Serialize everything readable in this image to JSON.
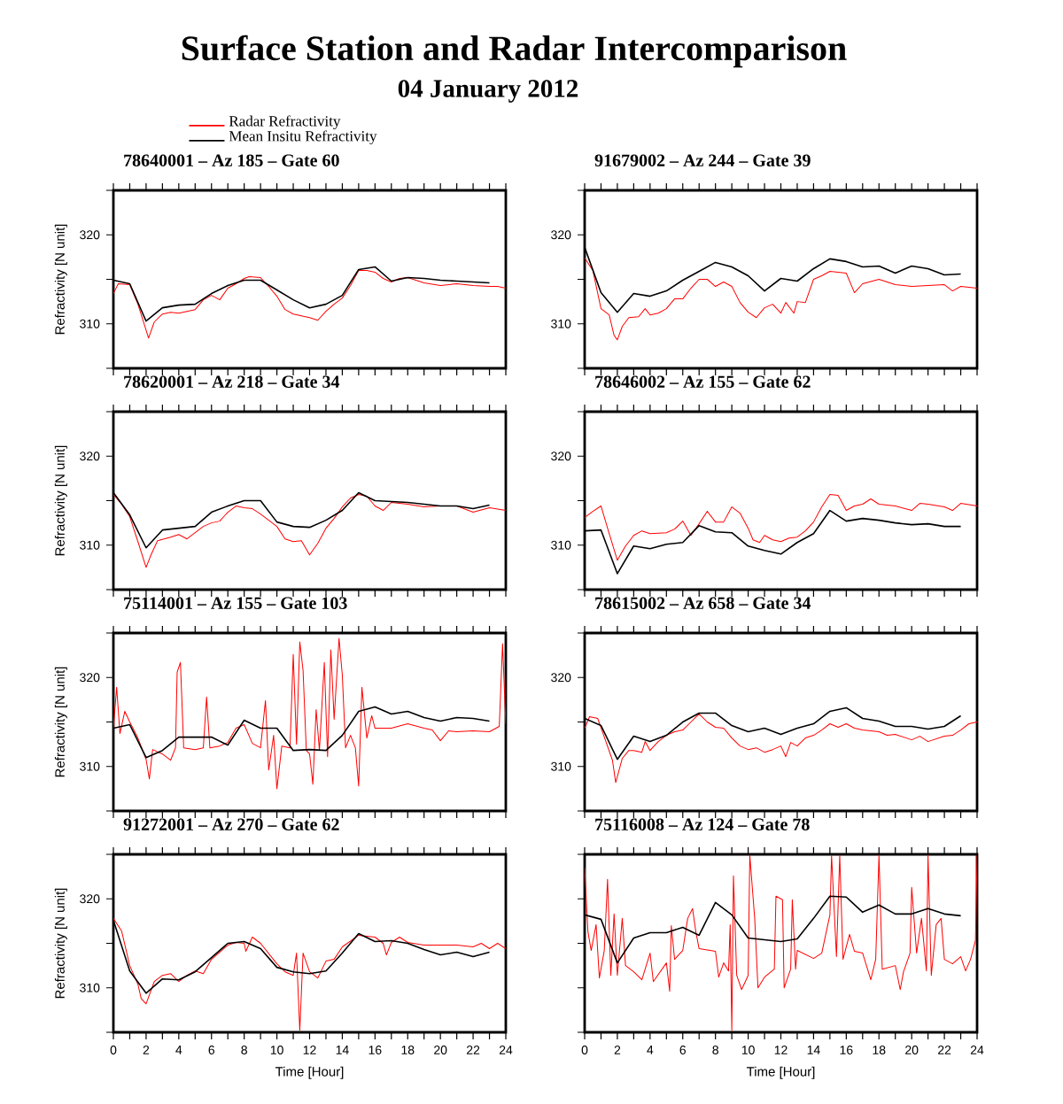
{
  "chart_data": [
    {
      "type": "line",
      "title": "78640001 – Az 185 – Gate 60",
      "ylabel": "Refractivity [N unit]",
      "annotations": [
        "Surface Station and Radar Intercomparison",
        "04 January 2012"
      ],
      "legend": "top left",
      "tick_labels": "y",
      "xlim": [
        0,
        24
      ],
      "ylim": [
        305,
        325
      ],
      "xticks": [
        0,
        {
          "value": 1,
          "label": null
        },
        2,
        {
          "value": 3,
          "label": null
        },
        4,
        {
          "value": 5,
          "label": null
        },
        6,
        {
          "value": 7,
          "label": null
        },
        8,
        {
          "value": 9,
          "label": null
        },
        10,
        {
          "value": 11,
          "label": null
        },
        12,
        {
          "value": 13,
          "label": null
        },
        14,
        {
          "value": 15,
          "label": null
        },
        16,
        {
          "value": 17,
          "label": null
        },
        18,
        {
          "value": 19,
          "label": null
        },
        20,
        {
          "value": 21,
          "label": null
        },
        22,
        {
          "value": 23,
          "label": null
        },
        24
      ],
      "yticks": [
        {
          "value": 305,
          "label": null
        },
        310,
        {
          "value": 315,
          "label": null
        },
        320,
        {
          "value": 325,
          "label": null
        }
      ],
      "series": [
        {
          "name": "Radar Refractivity",
          "color": "#ff0000",
          "x": [
            0,
            0.3,
            1,
            1.5,
            2,
            2.15,
            2.5,
            3,
            3.5,
            4,
            4.5,
            5,
            5.5,
            6,
            6.5,
            7,
            7.5,
            8,
            8.3,
            9,
            9.5,
            10,
            10.5,
            11,
            11.5,
            12,
            12.5,
            13,
            13.5,
            14,
            14.5,
            15,
            15.5,
            16,
            16.5,
            17,
            17.5,
            18,
            18.5,
            19,
            20,
            21,
            22,
            23,
            23.5,
            24
          ],
          "values": [
            313.4,
            314.5,
            314.4,
            312.2,
            309.3,
            308.4,
            310.2,
            311.1,
            311.3,
            311.2,
            311.4,
            311.6,
            312.7,
            313.2,
            312.7,
            314.0,
            314.5,
            315.1,
            315.3,
            315.2,
            314.2,
            313.1,
            311.6,
            311.1,
            310.9,
            310.7,
            310.4,
            311.4,
            312.2,
            312.9,
            314.3,
            316.0,
            316.0,
            315.8,
            315.1,
            314.7,
            315.1,
            315.2,
            314.9,
            314.6,
            314.3,
            314.5,
            314.3,
            314.2,
            314.2,
            314.0
          ]
        },
        {
          "name": "Mean Insitu Refractivity",
          "color": "#000000",
          "x": [
            0,
            1,
            2,
            3,
            4,
            5,
            6,
            7,
            8,
            9,
            10,
            11,
            12,
            13,
            14,
            15,
            16,
            17,
            18,
            19,
            20,
            21,
            22,
            23
          ],
          "values": [
            314.9,
            314.5,
            310.3,
            311.8,
            312.1,
            312.2,
            313.4,
            314.3,
            314.9,
            314.9,
            313.8,
            312.7,
            311.8,
            312.2,
            313.2,
            316.1,
            316.4,
            314.8,
            315.2,
            315.1,
            314.9,
            314.8,
            314.7,
            314.6
          ]
        }
      ]
    },
    {
      "type": "line",
      "title": "91679002 – Az 244 – Gate 39",
      "tick_labels": "y",
      "xlim": [
        0,
        24
      ],
      "ylim": [
        305,
        325
      ],
      "xticks": [
        0,
        {
          "value": 1,
          "label": null
        },
        2,
        {
          "value": 3,
          "label": null
        },
        4,
        {
          "value": 5,
          "label": null
        },
        6,
        {
          "value": 7,
          "label": null
        },
        8,
        {
          "value": 9,
          "label": null
        },
        10,
        {
          "value": 11,
          "label": null
        },
        12,
        {
          "value": 13,
          "label": null
        },
        14,
        {
          "value": 15,
          "label": null
        },
        16,
        {
          "value": 17,
          "label": null
        },
        18,
        {
          "value": 19,
          "label": null
        },
        20,
        {
          "value": 21,
          "label": null
        },
        22,
        {
          "value": 23,
          "label": null
        },
        24
      ],
      "yticks": [
        {
          "value": 305,
          "label": null
        },
        310,
        {
          "value": 315,
          "label": null
        },
        320,
        {
          "value": 325,
          "label": null
        }
      ],
      "series": [
        {
          "color": "#ff0000",
          "x": [
            0,
            0.5,
            1,
            1.5,
            1.8,
            2,
            2.3,
            2.7,
            3.3,
            3.7,
            4,
            4.5,
            5,
            5.5,
            6,
            6.5,
            7,
            7.5,
            8,
            8.5,
            9,
            9.5,
            10,
            10.5,
            11,
            11.5,
            12,
            12.3,
            12.8,
            13,
            13.5,
            14,
            14.5,
            15,
            16,
            16.5,
            17,
            18,
            19,
            20,
            21,
            22,
            22.5,
            23,
            24
          ],
          "values": [
            317.4,
            316.0,
            311.7,
            311.0,
            308.7,
            308.2,
            309.7,
            310.7,
            310.8,
            311.7,
            311.0,
            311.2,
            311.7,
            312.8,
            312.8,
            314.0,
            315.0,
            315.0,
            314.2,
            314.7,
            314.2,
            312.4,
            311.3,
            310.7,
            311.8,
            312.2,
            311.2,
            312.4,
            311.2,
            312.5,
            312.4,
            315.0,
            315.4,
            315.9,
            315.7,
            313.5,
            314.5,
            315.0,
            314.4,
            314.2,
            314.3,
            314.4,
            313.7,
            314.2,
            314.0
          ]
        },
        {
          "color": "#000000",
          "x": [
            0,
            1,
            2,
            3,
            4,
            5,
            6,
            7,
            8,
            9,
            10,
            11,
            12,
            13,
            14,
            15,
            16,
            17,
            18,
            19,
            20,
            21,
            22,
            23
          ],
          "values": [
            318.6,
            313.5,
            311.3,
            313.4,
            313.1,
            313.7,
            314.9,
            315.9,
            316.9,
            316.4,
            315.4,
            313.7,
            315.1,
            314.8,
            316.2,
            317.3,
            317.0,
            316.4,
            316.5,
            315.7,
            316.5,
            316.2,
            315.5,
            315.6
          ]
        }
      ]
    },
    {
      "type": "line",
      "title": "78620001 – Az 218 – Gate 34",
      "ylabel": "Refractivity [N unit]",
      "tick_labels": "y",
      "xlim": [
        0,
        24
      ],
      "ylim": [
        305,
        325
      ],
      "xticks": [
        0,
        {
          "value": 1,
          "label": null
        },
        2,
        {
          "value": 3,
          "label": null
        },
        4,
        {
          "value": 5,
          "label": null
        },
        6,
        {
          "value": 7,
          "label": null
        },
        8,
        {
          "value": 9,
          "label": null
        },
        10,
        {
          "value": 11,
          "label": null
        },
        12,
        {
          "value": 13,
          "label": null
        },
        14,
        {
          "value": 15,
          "label": null
        },
        16,
        {
          "value": 17,
          "label": null
        },
        18,
        {
          "value": 19,
          "label": null
        },
        20,
        {
          "value": 21,
          "label": null
        },
        22,
        {
          "value": 23,
          "label": null
        },
        24
      ],
      "yticks": [
        {
          "value": 305,
          "label": null
        },
        310,
        {
          "value": 315,
          "label": null
        },
        320,
        {
          "value": 325,
          "label": null
        }
      ],
      "series": [
        {
          "color": "#ff0000",
          "x": [
            0,
            0.5,
            1,
            1.5,
            2,
            2.3,
            2.7,
            3.5,
            4,
            4.5,
            5,
            5.5,
            6,
            6.5,
            7,
            7.5,
            8,
            8.5,
            9,
            10,
            10.5,
            11,
            11.5,
            12,
            12.5,
            13,
            13.5,
            14,
            14.5,
            15,
            15.5,
            16,
            16.5,
            17,
            18,
            19,
            20,
            21,
            22,
            23,
            24
          ],
          "values": [
            315.7,
            314.6,
            313.2,
            310.4,
            307.5,
            308.9,
            310.5,
            310.9,
            311.2,
            310.7,
            311.4,
            312.1,
            312.5,
            312.7,
            313.7,
            314.4,
            314.2,
            314.1,
            313.5,
            312.1,
            310.7,
            310.4,
            310.5,
            308.9,
            310.2,
            311.9,
            313.0,
            314.3,
            315.3,
            315.7,
            315.5,
            314.4,
            313.9,
            314.8,
            314.6,
            314.3,
            314.4,
            314.4,
            313.7,
            314.2,
            313.9
          ]
        },
        {
          "color": "#000000",
          "x": [
            0,
            1,
            2,
            3,
            4,
            5,
            6,
            7,
            8,
            9,
            10,
            11,
            12,
            13,
            14,
            15,
            16,
            17,
            18,
            19,
            20,
            21,
            22,
            23
          ],
          "values": [
            315.9,
            313.4,
            309.7,
            311.7,
            311.9,
            312.1,
            313.7,
            314.4,
            315.0,
            315.0,
            312.6,
            312.1,
            312.0,
            312.8,
            313.9,
            315.9,
            315.0,
            314.9,
            314.8,
            314.6,
            314.4,
            314.4,
            314.1,
            314.5
          ]
        }
      ]
    },
    {
      "type": "line",
      "title": "78646002 – Az 155 – Gate 62",
      "tick_labels": "y",
      "xlim": [
        0,
        24
      ],
      "ylim": [
        305,
        325
      ],
      "xticks": [
        0,
        {
          "value": 1,
          "label": null
        },
        2,
        {
          "value": 3,
          "label": null
        },
        4,
        {
          "value": 5,
          "label": null
        },
        6,
        {
          "value": 7,
          "label": null
        },
        8,
        {
          "value": 9,
          "label": null
        },
        10,
        {
          "value": 11,
          "label": null
        },
        12,
        {
          "value": 13,
          "label": null
        },
        14,
        {
          "value": 15,
          "label": null
        },
        16,
        {
          "value": 17,
          "label": null
        },
        18,
        {
          "value": 19,
          "label": null
        },
        20,
        {
          "value": 21,
          "label": null
        },
        22,
        {
          "value": 23,
          "label": null
        },
        24
      ],
      "yticks": [
        {
          "value": 305,
          "label": null
        },
        310,
        {
          "value": 315,
          "label": null
        },
        320,
        {
          "value": 325,
          "label": null
        }
      ],
      "series": [
        {
          "color": "#ff0000",
          "x": [
            0,
            0.5,
            1,
            1.5,
            2,
            2.5,
            3,
            3.5,
            4,
            5,
            5.5,
            6,
            6.5,
            7,
            7.5,
            8,
            8.5,
            9,
            9.5,
            10,
            10.3,
            10.7,
            11,
            11.5,
            12,
            12.5,
            13,
            13.5,
            14,
            14.5,
            15,
            15.5,
            16,
            16.5,
            17,
            17.5,
            18,
            19,
            20,
            20.5,
            21,
            22,
            22.5,
            23,
            24
          ],
          "values": [
            313.1,
            313.8,
            314.4,
            311.3,
            308.3,
            309.9,
            311.1,
            311.6,
            311.3,
            311.4,
            311.8,
            312.7,
            311.1,
            312.4,
            313.8,
            312.6,
            312.6,
            314.3,
            313.6,
            311.9,
            310.6,
            310.3,
            311.1,
            310.6,
            310.4,
            310.8,
            310.9,
            311.6,
            312.6,
            314.3,
            315.7,
            315.6,
            313.9,
            314.4,
            314.6,
            315.2,
            314.6,
            314.4,
            313.9,
            314.7,
            314.6,
            314.3,
            313.9,
            314.7,
            314.4
          ]
        },
        {
          "color": "#000000",
          "x": [
            0,
            1,
            2,
            3,
            4,
            5,
            6,
            7,
            8,
            9,
            10,
            11,
            12,
            13,
            14,
            15,
            16,
            17,
            18,
            19,
            20,
            21,
            22,
            23
          ],
          "values": [
            311.6,
            311.7,
            306.8,
            309.9,
            309.6,
            310.1,
            310.3,
            312.2,
            311.5,
            311.4,
            309.9,
            309.4,
            309.0,
            310.3,
            311.3,
            313.9,
            312.7,
            313.0,
            312.8,
            312.5,
            312.3,
            312.4,
            312.1,
            312.1
          ]
        }
      ]
    },
    {
      "type": "line",
      "title": "75114001 – Az 155 – Gate 103",
      "ylabel": "Refractivity [N unit]",
      "tick_labels": "y",
      "xlim": [
        0,
        24
      ],
      "ylim": [
        305,
        325
      ],
      "xticks": [
        0,
        {
          "value": 1,
          "label": null
        },
        2,
        {
          "value": 3,
          "label": null
        },
        4,
        {
          "value": 5,
          "label": null
        },
        6,
        {
          "value": 7,
          "label": null
        },
        8,
        {
          "value": 9,
          "label": null
        },
        10,
        {
          "value": 11,
          "label": null
        },
        12,
        {
          "value": 13,
          "label": null
        },
        14,
        {
          "value": 15,
          "label": null
        },
        16,
        {
          "value": 17,
          "label": null
        },
        18,
        {
          "value": 19,
          "label": null
        },
        20,
        {
          "value": 21,
          "label": null
        },
        22,
        {
          "value": 23,
          "label": null
        },
        24
      ],
      "yticks": [
        {
          "value": 305,
          "label": null
        },
        310,
        {
          "value": 315,
          "label": null
        },
        320,
        {
          "value": 325,
          "label": null
        }
      ],
      "series": [
        {
          "color": "#ff0000",
          "x": [
            0,
            0.2,
            0.4,
            0.7,
            1,
            1.5,
            2,
            2.2,
            2.4,
            3,
            3.5,
            3.8,
            3.9,
            4.1,
            4.3,
            5,
            5.5,
            5.7,
            5.9,
            6.5,
            7,
            7.5,
            8,
            8.5,
            9,
            9.3,
            9.5,
            9.8,
            10,
            10.3,
            10.8,
            11,
            11.2,
            11.4,
            11.6,
            11.8,
            12,
            12.2,
            12.4,
            12.6,
            12.9,
            13.1,
            13.3,
            13.5,
            13.8,
            14,
            14.2,
            14.5,
            14.8,
            15,
            15.2,
            15.5,
            15.8,
            16,
            16.5,
            17,
            18,
            19,
            19.5,
            20,
            20.5,
            21,
            22,
            23,
            23.6,
            23.8,
            24
          ],
          "values": [
            314.3,
            318.9,
            313.7,
            316.2,
            315.0,
            313.2,
            310.8,
            308.6,
            311.9,
            311.4,
            310.7,
            312.1,
            320.6,
            321.7,
            312.1,
            311.9,
            312.1,
            317.8,
            312.1,
            312.3,
            312.7,
            314.3,
            314.7,
            312.6,
            312.1,
            317.4,
            309.6,
            313.5,
            307.5,
            312.3,
            312.1,
            322.6,
            312.5,
            324.0,
            320.8,
            311.8,
            311.4,
            308.0,
            316.4,
            311.8,
            321.7,
            311.1,
            323.1,
            315.3,
            324.4,
            320.3,
            312.1,
            313.5,
            312.1,
            307.8,
            318.9,
            313.2,
            315.7,
            314.3,
            314.3,
            314.3,
            314.8,
            314.3,
            314.1,
            312.9,
            314.0,
            313.9,
            314.0,
            313.9,
            314.5,
            323.8,
            314.8
          ]
        },
        {
          "color": "#000000",
          "x": [
            0,
            1,
            2,
            3,
            4,
            5,
            6,
            7,
            8,
            9,
            10,
            11,
            12,
            13,
            14,
            15,
            16,
            17,
            18,
            19,
            20,
            21,
            22,
            23
          ],
          "values": [
            314.3,
            314.7,
            311.0,
            311.8,
            313.3,
            313.3,
            313.3,
            312.4,
            315.2,
            314.3,
            314.3,
            311.8,
            311.9,
            311.8,
            313.5,
            316.2,
            316.7,
            315.9,
            316.2,
            315.5,
            315.1,
            315.5,
            315.4,
            315.1
          ]
        }
      ]
    },
    {
      "type": "line",
      "title": "78615002 – Az 658 – Gate 34",
      "tick_labels": "y",
      "xlim": [
        0,
        24
      ],
      "ylim": [
        305,
        325
      ],
      "xticks": [
        0,
        {
          "value": 1,
          "label": null
        },
        2,
        {
          "value": 3,
          "label": null
        },
        4,
        {
          "value": 5,
          "label": null
        },
        6,
        {
          "value": 7,
          "label": null
        },
        8,
        {
          "value": 9,
          "label": null
        },
        10,
        {
          "value": 11,
          "label": null
        },
        12,
        {
          "value": 13,
          "label": null
        },
        14,
        {
          "value": 15,
          "label": null
        },
        16,
        {
          "value": 17,
          "label": null
        },
        18,
        {
          "value": 19,
          "label": null
        },
        20,
        {
          "value": 21,
          "label": null
        },
        22,
        {
          "value": 23,
          "label": null
        },
        24
      ],
      "yticks": [
        {
          "value": 305,
          "label": null
        },
        310,
        {
          "value": 315,
          "label": null
        },
        320,
        {
          "value": 325,
          "label": null
        }
      ],
      "series": [
        {
          "color": "#ff0000",
          "x": [
            0,
            0.3,
            0.8,
            1.3,
            1.7,
            1.9,
            2.3,
            2.7,
            3,
            3.5,
            3.7,
            4,
            4.5,
            5,
            5.5,
            6,
            6.5,
            7,
            7.5,
            8,
            8.5,
            9,
            9.5,
            10,
            10.5,
            11,
            11.5,
            12,
            12.3,
            12.6,
            13,
            13.5,
            14,
            14.5,
            15,
            15.5,
            16,
            16.5,
            17,
            18,
            18.5,
            19,
            20,
            20.5,
            21,
            22,
            22.5,
            23,
            23.5,
            24
          ],
          "values": [
            314.3,
            315.6,
            315.4,
            312.8,
            310.7,
            308.2,
            310.9,
            311.8,
            311.8,
            311.6,
            312.8,
            311.8,
            312.8,
            313.5,
            313.9,
            314.1,
            315.0,
            315.9,
            315.0,
            314.4,
            314.3,
            313.2,
            312.3,
            311.9,
            312.1,
            311.6,
            311.9,
            312.3,
            311.1,
            312.7,
            312.3,
            313.2,
            313.5,
            314.1,
            314.8,
            314.4,
            314.8,
            314.3,
            314.1,
            313.9,
            313.5,
            313.6,
            313.0,
            313.4,
            312.8,
            313.4,
            313.5,
            314.1,
            314.8,
            315.0
          ]
        },
        {
          "color": "#000000",
          "x": [
            0,
            1,
            2,
            3,
            4,
            5,
            6,
            7,
            8,
            9,
            10,
            11,
            12,
            13,
            14,
            15,
            16,
            17,
            18,
            19,
            20,
            21,
            22,
            23
          ],
          "values": [
            315.4,
            314.6,
            310.8,
            313.4,
            312.8,
            313.5,
            315.0,
            316.0,
            316.0,
            314.6,
            313.9,
            314.3,
            313.6,
            314.3,
            314.8,
            316.2,
            316.6,
            315.4,
            315.1,
            314.5,
            314.5,
            314.2,
            314.5,
            315.7
          ]
        }
      ]
    },
    {
      "type": "line",
      "title": "91272001 – Az 270 – Gate 62",
      "xlabel": "Time [Hour]",
      "ylabel": "Refractivity [N unit]",
      "xlim": [
        0,
        24
      ],
      "ylim": [
        305,
        325
      ],
      "xticks": [
        0,
        {
          "value": 1,
          "label": null
        },
        2,
        {
          "value": 3,
          "label": null
        },
        4,
        {
          "value": 5,
          "label": null
        },
        6,
        {
          "value": 7,
          "label": null
        },
        8,
        {
          "value": 9,
          "label": null
        },
        10,
        {
          "value": 11,
          "label": null
        },
        12,
        {
          "value": 13,
          "label": null
        },
        14,
        {
          "value": 15,
          "label": null
        },
        16,
        {
          "value": 17,
          "label": null
        },
        18,
        {
          "value": 19,
          "label": null
        },
        20,
        {
          "value": 21,
          "label": null
        },
        22,
        {
          "value": 23,
          "label": null
        },
        24
      ],
      "yticks": [
        {
          "value": 305,
          "label": null
        },
        310,
        {
          "value": 315,
          "label": null
        },
        320,
        {
          "value": 325,
          "label": null
        }
      ],
      "series": [
        {
          "color": "#ff0000",
          "x": [
            0,
            0.5,
            1,
            1.5,
            1.7,
            2,
            2.5,
            3,
            3.5,
            4,
            4.5,
            5,
            5.5,
            6,
            7,
            7.5,
            8,
            8.1,
            8.5,
            9,
            10,
            10.5,
            11,
            11.2,
            11.4,
            11.6,
            12,
            12.5,
            13,
            13.5,
            14,
            15,
            16,
            16.5,
            16.7,
            17,
            17.5,
            18,
            19,
            20,
            21,
            22,
            22.5,
            23,
            23.5,
            24
          ],
          "values": [
            317.8,
            316.4,
            312.5,
            310.4,
            308.8,
            308.2,
            310.7,
            311.4,
            311.6,
            310.7,
            311.4,
            311.9,
            311.6,
            313.2,
            314.8,
            315.1,
            315.0,
            314.1,
            315.7,
            315.0,
            312.7,
            311.8,
            311.4,
            313.9,
            305.2,
            313.9,
            311.8,
            311.1,
            313.0,
            313.2,
            314.6,
            315.9,
            315.7,
            315.0,
            313.7,
            315.1,
            315.7,
            315.1,
            314.8,
            314.8,
            314.8,
            314.6,
            315.0,
            314.4,
            315.0,
            314.4
          ]
        },
        {
          "color": "#000000",
          "x": [
            0,
            1,
            2,
            3,
            4,
            5,
            6,
            7,
            8,
            9,
            10,
            11,
            12,
            13,
            14,
            15,
            16,
            17,
            18,
            19,
            20,
            21,
            22,
            23
          ],
          "values": [
            317.6,
            311.9,
            309.4,
            311.0,
            310.9,
            311.8,
            313.4,
            315.0,
            315.2,
            314.4,
            312.3,
            311.8,
            311.6,
            311.9,
            313.9,
            316.1,
            315.2,
            315.3,
            315.0,
            314.3,
            313.7,
            314.0,
            313.5,
            314.0
          ]
        }
      ]
    },
    {
      "type": "line",
      "title": "75116008 – Az 124 – Gate 78",
      "xlabel": "Time [Hour]",
      "tick_labels": "x",
      "xlim": [
        0,
        24
      ],
      "ylim": [
        305,
        325
      ],
      "xticks": [
        0,
        {
          "value": 1,
          "label": null
        },
        2,
        {
          "value": 3,
          "label": null
        },
        4,
        {
          "value": 5,
          "label": null
        },
        6,
        {
          "value": 7,
          "label": null
        },
        8,
        {
          "value": 9,
          "label": null
        },
        10,
        {
          "value": 11,
          "label": null
        },
        12,
        {
          "value": 13,
          "label": null
        },
        14,
        {
          "value": 15,
          "label": null
        },
        16,
        {
          "value": 17,
          "label": null
        },
        18,
        {
          "value": 19,
          "label": null
        },
        20,
        {
          "value": 21,
          "label": null
        },
        22,
        {
          "value": 23,
          "label": null
        },
        24
      ],
      "yticks": [
        {
          "value": 305,
          "label": null
        },
        310,
        {
          "value": 315,
          "label": null
        },
        320,
        {
          "value": 325,
          "label": null
        }
      ],
      "series": [
        {
          "color": "#ff0000",
          "x": [
            0,
            0.2,
            0.4,
            0.7,
            0.9,
            1.2,
            1.4,
            1.6,
            1.8,
            2,
            2.3,
            2.5,
            3,
            3.5,
            4,
            4.2,
            5,
            5.2,
            5.3,
            5.5,
            6,
            6.3,
            6.6,
            6.8,
            7,
            8,
            8.2,
            8.5,
            8.8,
            8.9,
            9,
            9.1,
            9.3,
            9.6,
            10,
            10.1,
            10.4,
            10.6,
            11,
            11.6,
            11.7,
            12.1,
            12.2,
            12.6,
            12.7,
            12.9,
            13,
            14,
            14.5,
            15,
            15.1,
            15.4,
            15.6,
            15.8,
            16.2,
            16.5,
            17,
            17.5,
            17.8,
            18,
            18.2,
            19,
            19.3,
            19.5,
            19.9,
            20,
            20.3,
            20.6,
            20.9,
            21,
            21.2,
            21.5,
            21.8,
            22,
            22.5,
            23,
            23.3,
            23.6,
            23.9,
            24
          ],
          "values": [
            323.5,
            316.3,
            314.2,
            317.1,
            311.1,
            314.2,
            322.2,
            311.4,
            318.3,
            311.4,
            317.8,
            312.5,
            311.8,
            310.9,
            313.9,
            310.7,
            312.8,
            309.6,
            317.0,
            313.2,
            314.2,
            317.8,
            318.9,
            316.3,
            314.4,
            314.1,
            311.2,
            312.8,
            311.9,
            317.1,
            305.2,
            322.6,
            311.4,
            309.8,
            311.4,
            324.9,
            317.8,
            310.0,
            311.2,
            312.1,
            320.3,
            319.9,
            310.0,
            312.1,
            319.9,
            312.1,
            314.2,
            313.3,
            313.9,
            318.2,
            324.9,
            313.5,
            324.9,
            313.2,
            316.0,
            314.1,
            313.9,
            310.9,
            313.2,
            324.9,
            312.1,
            312.5,
            309.8,
            311.8,
            313.9,
            321.3,
            313.9,
            317.8,
            311.9,
            324.9,
            311.4,
            317.1,
            317.8,
            313.2,
            312.7,
            313.5,
            311.9,
            313.2,
            315.3,
            324.9
          ]
        },
        {
          "color": "#000000",
          "x": [
            0,
            1,
            2,
            3,
            4,
            5,
            6,
            7,
            8,
            9,
            10,
            11,
            12,
            13,
            14,
            15,
            16,
            17,
            18,
            19,
            20,
            21,
            22,
            23
          ],
          "values": [
            318.2,
            317.7,
            312.8,
            315.6,
            316.2,
            316.2,
            316.8,
            315.9,
            319.6,
            318.2,
            315.6,
            315.4,
            315.2,
            315.5,
            317.8,
            320.3,
            320.2,
            318.5,
            319.3,
            318.3,
            318.3,
            318.9,
            318.3,
            318.1
          ]
        }
      ]
    }
  ]
}
